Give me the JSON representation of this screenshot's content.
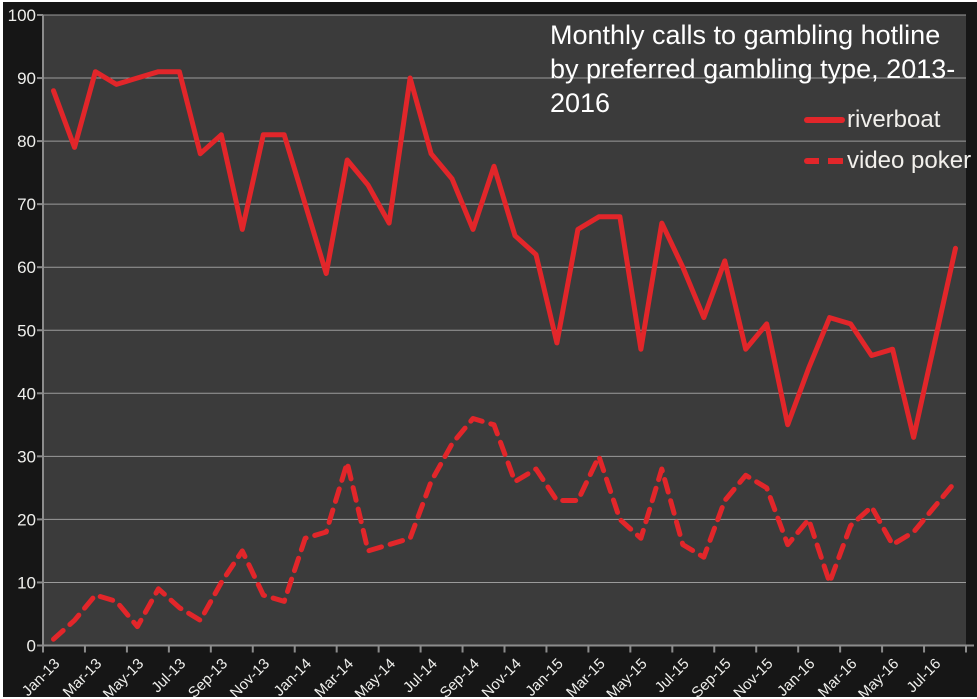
{
  "title": {
    "line1": "Monthly calls to gambling hotline",
    "line2": "by preferred gambling type, 2013-2016"
  },
  "legend": {
    "riverboat_label": "riverboat",
    "video_poker_label": "video poker"
  },
  "colors": {
    "line_red": "#e2262a",
    "plot_background": "#3b3b3b",
    "outer_background": "#161616",
    "gridline": "#9b9b9b",
    "axis": "#8c8c8c",
    "label_text": "#efefec",
    "title_text": "#ffffff"
  },
  "chart_data": {
    "type": "line",
    "title": "Monthly calls to gambling hotline by preferred gambling type, 2013-2016",
    "xlabel": "",
    "ylabel": "",
    "ylim": [
      0,
      100
    ],
    "yticks": [
      0,
      10,
      20,
      30,
      40,
      50,
      60,
      70,
      80,
      90,
      100
    ],
    "grid": "horizontal",
    "legend_position": "top-right",
    "x": [
      "Jan-13",
      "Feb-13",
      "Mar-13",
      "Apr-13",
      "May-13",
      "Jun-13",
      "Jul-13",
      "Aug-13",
      "Sep-13",
      "Oct-13",
      "Nov-13",
      "Dec-13",
      "Jan-14",
      "Feb-14",
      "Mar-14",
      "Apr-14",
      "May-14",
      "Jun-14",
      "Jul-14",
      "Aug-14",
      "Sep-14",
      "Oct-14",
      "Nov-14",
      "Dec-14",
      "Jan-15",
      "Feb-15",
      "Mar-15",
      "Apr-15",
      "May-15",
      "Jun-15",
      "Jul-15",
      "Aug-15",
      "Sep-15",
      "Oct-15",
      "Nov-15",
      "Dec-15",
      "Jan-16",
      "Feb-16",
      "Mar-16",
      "Apr-16",
      "May-16",
      "Jun-16",
      "Jul-16",
      "Aug-16"
    ],
    "x_label_every": 2,
    "series": [
      {
        "name": "riverboat",
        "dash": false,
        "values": [
          88,
          79,
          91,
          89,
          90,
          91,
          91,
          78,
          81,
          66,
          81,
          81,
          70,
          59,
          77,
          73,
          67,
          90,
          78,
          74,
          66,
          76,
          65,
          62,
          48,
          66,
          68,
          68,
          47,
          67,
          60,
          52,
          61,
          47,
          51,
          35,
          44,
          52,
          51,
          46,
          47,
          33,
          48,
          63
        ]
      },
      {
        "name": "video poker",
        "dash": true,
        "values": [
          1,
          4,
          8,
          7,
          3,
          9,
          6,
          4,
          10,
          15,
          8,
          7,
          17,
          18,
          29,
          15,
          16,
          17,
          26,
          32,
          36,
          35,
          26,
          28,
          23,
          23,
          30,
          20,
          17,
          28,
          16,
          14,
          23,
          27,
          25,
          16,
          20,
          10,
          19,
          22,
          16,
          18,
          22,
          26
        ]
      }
    ]
  }
}
